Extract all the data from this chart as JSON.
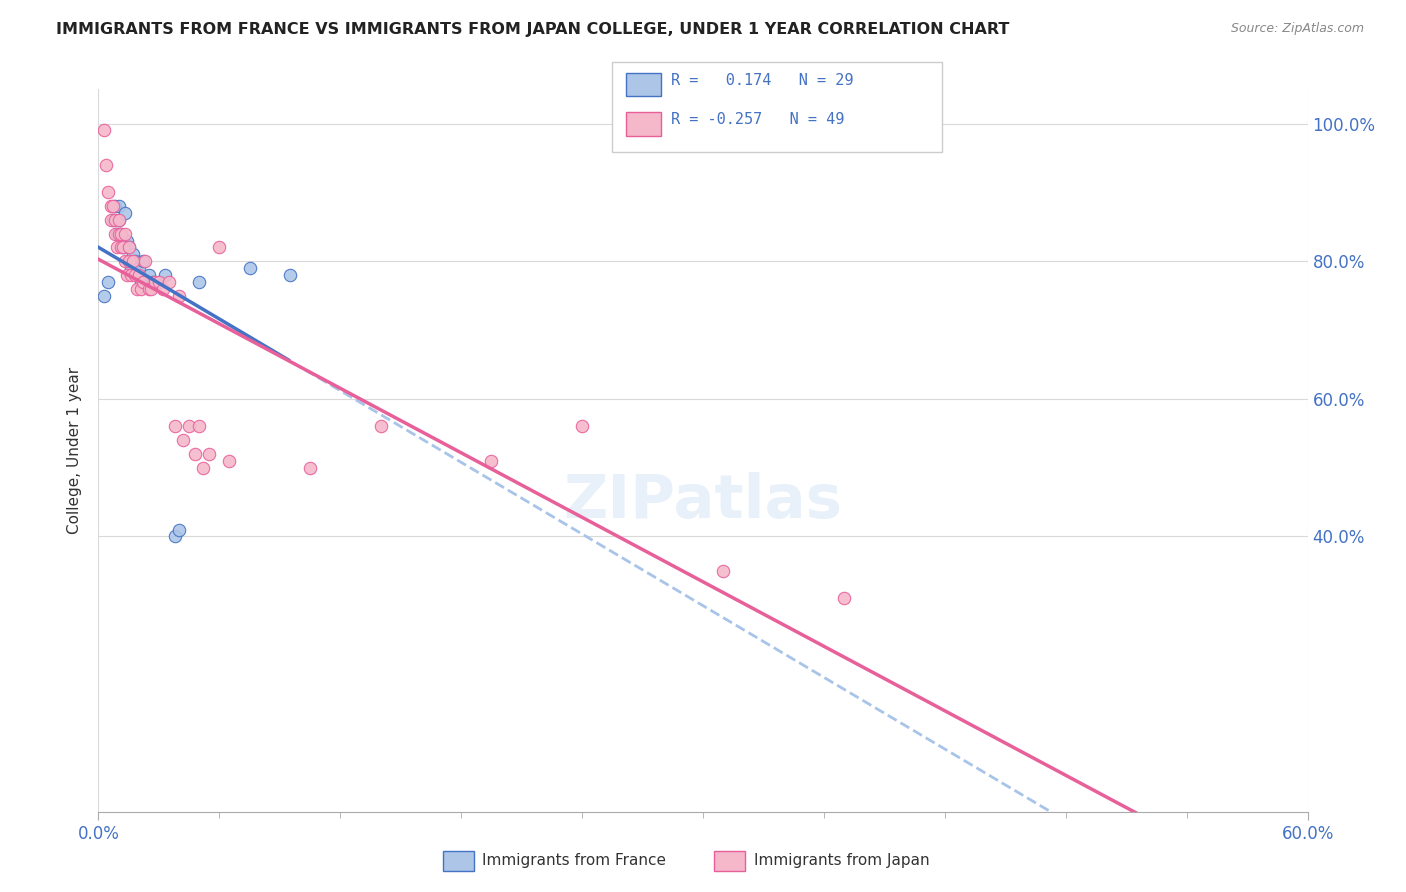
{
  "title": "IMMIGRANTS FROM FRANCE VS IMMIGRANTS FROM JAPAN COLLEGE, UNDER 1 YEAR CORRELATION CHART",
  "source": "Source: ZipAtlas.com",
  "ylabel": "College, Under 1 year",
  "legend_france": "Immigrants from France",
  "legend_japan": "Immigrants from Japan",
  "R_france": "0.174",
  "N_france": "29",
  "R_japan": "-0.257",
  "N_japan": "49",
  "color_france": "#adc6e8",
  "color_japan": "#f5b8cb",
  "trendline_france_solid": "#4472c4",
  "trendline_france_dash": "#a8c4e8",
  "trendline_japan": "#e8609a",
  "background_color": "#ffffff",
  "grid_color": "#d9d9d9",
  "xlim": [
    0.0,
    0.6
  ],
  "ylim": [
    0.0,
    1.05
  ],
  "france_x": [
    0.003,
    0.005,
    0.007,
    0.008,
    0.009,
    0.01,
    0.01,
    0.011,
    0.012,
    0.013,
    0.014,
    0.015,
    0.015,
    0.016,
    0.017,
    0.018,
    0.019,
    0.02,
    0.021,
    0.022,
    0.025,
    0.027,
    0.03,
    0.033,
    0.038,
    0.04,
    0.05,
    0.075,
    0.095
  ],
  "france_y": [
    0.75,
    0.77,
    0.86,
    0.88,
    0.84,
    0.88,
    0.86,
    0.84,
    0.82,
    0.87,
    0.83,
    0.82,
    0.8,
    0.79,
    0.81,
    0.8,
    0.78,
    0.79,
    0.77,
    0.8,
    0.78,
    0.77,
    0.77,
    0.78,
    0.4,
    0.41,
    0.77,
    0.79,
    0.78
  ],
  "japan_x": [
    0.003,
    0.004,
    0.005,
    0.006,
    0.006,
    0.007,
    0.008,
    0.008,
    0.009,
    0.01,
    0.01,
    0.011,
    0.011,
    0.012,
    0.013,
    0.013,
    0.014,
    0.015,
    0.015,
    0.016,
    0.017,
    0.018,
    0.019,
    0.02,
    0.021,
    0.022,
    0.023,
    0.025,
    0.026,
    0.028,
    0.03,
    0.032,
    0.035,
    0.038,
    0.04,
    0.042,
    0.045,
    0.048,
    0.05,
    0.052,
    0.055,
    0.06,
    0.065,
    0.105,
    0.14,
    0.195,
    0.24,
    0.31,
    0.37
  ],
  "japan_y": [
    0.99,
    0.94,
    0.9,
    0.88,
    0.86,
    0.88,
    0.86,
    0.84,
    0.82,
    0.86,
    0.84,
    0.84,
    0.82,
    0.82,
    0.84,
    0.8,
    0.78,
    0.82,
    0.8,
    0.78,
    0.8,
    0.78,
    0.76,
    0.78,
    0.76,
    0.77,
    0.8,
    0.76,
    0.76,
    0.77,
    0.77,
    0.76,
    0.77,
    0.56,
    0.75,
    0.54,
    0.56,
    0.52,
    0.56,
    0.5,
    0.52,
    0.82,
    0.51,
    0.5,
    0.56,
    0.51,
    0.56,
    0.35,
    0.31
  ],
  "trendline_switch_x": 0.095
}
